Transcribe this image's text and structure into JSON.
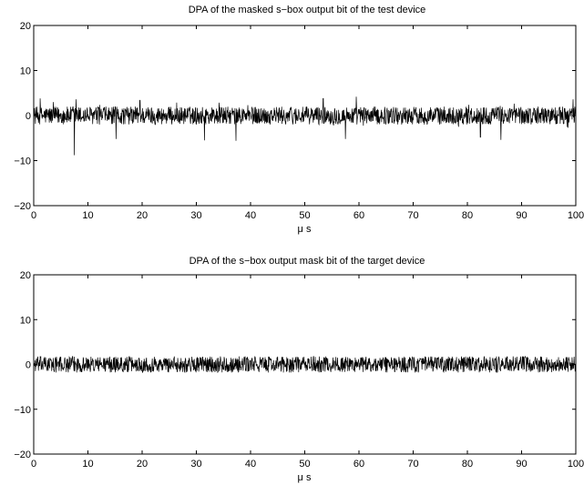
{
  "chart_data": [
    {
      "type": "line",
      "title": "DPA of the masked s−box output bit of the test device",
      "xlabel": "μ s",
      "ylabel": "",
      "xlim": [
        0,
        100
      ],
      "ylim": [
        -20,
        20
      ],
      "x_ticks": [
        "0",
        "10",
        "20",
        "30",
        "40",
        "50",
        "60",
        "70",
        "80",
        "90",
        "100"
      ],
      "y_ticks": [
        "20",
        "10",
        "0",
        "−10",
        "−20"
      ],
      "grid": false,
      "series": [
        {
          "color": "#000000",
          "noise_band": [
            -2,
            2
          ],
          "peaks": [
            {
              "x": 7.5,
              "y": -8.8
            },
            {
              "x": 7.8,
              "y": 3.6
            },
            {
              "x": 1.2,
              "y": 3.8
            },
            {
              "x": 15.2,
              "y": -5.2
            },
            {
              "x": 19.6,
              "y": 3.4
            },
            {
              "x": 31.5,
              "y": -5.5
            },
            {
              "x": 37.3,
              "y": -5.6
            },
            {
              "x": 53.4,
              "y": 3.8
            },
            {
              "x": 57.5,
              "y": -5.2
            },
            {
              "x": 59.5,
              "y": 4.2
            },
            {
              "x": 82.4,
              "y": -4.8
            },
            {
              "x": 86.2,
              "y": -5.4
            },
            {
              "x": 99.5,
              "y": 3.6
            }
          ]
        }
      ]
    },
    {
      "type": "line",
      "title": "DPA of the s−box output mask bit of the target device",
      "xlabel": "μ s",
      "ylabel": "",
      "xlim": [
        0,
        100
      ],
      "ylim": [
        -20,
        20
      ],
      "x_ticks": [
        "0",
        "10",
        "20",
        "30",
        "40",
        "50",
        "60",
        "70",
        "80",
        "90",
        "100"
      ],
      "y_ticks": [
        "20",
        "10",
        "0",
        "−10",
        "−20"
      ],
      "grid": false,
      "series": [
        {
          "color": "#000000",
          "noise_band": [
            -1.8,
            1.8
          ],
          "peaks": []
        }
      ]
    }
  ]
}
